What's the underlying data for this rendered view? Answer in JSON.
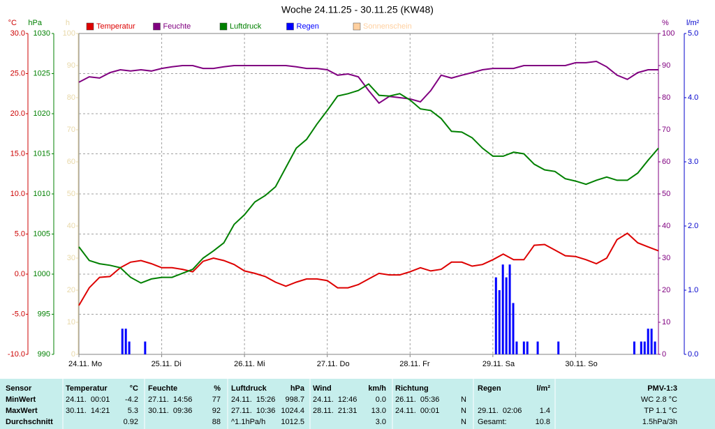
{
  "chart_data": {
    "type": "line",
    "title": "Woche 24.11.25 - 30.11.25 (KW48)",
    "grid": true,
    "x": [
      0,
      3,
      6,
      9,
      12,
      15,
      18,
      21,
      24,
      27,
      30,
      33,
      36,
      39,
      42,
      45,
      48,
      51,
      54,
      57,
      60,
      63,
      66,
      69,
      72,
      75,
      78,
      81,
      84,
      87,
      90,
      93,
      96,
      99,
      102,
      105,
      108,
      111,
      114,
      117,
      120,
      123,
      126,
      129,
      132,
      135,
      138,
      141,
      144,
      147,
      150,
      153,
      156,
      159,
      162,
      165,
      168
    ],
    "xlim": [
      0,
      168
    ],
    "xticks": [
      {
        "value": 0,
        "label": "24.11. Mo"
      },
      {
        "value": 24,
        "label": "25.11. Di"
      },
      {
        "value": 48,
        "label": "26.11. Mi"
      },
      {
        "value": 72,
        "label": "27.11. Do"
      },
      {
        "value": 96,
        "label": "28.11. Fr"
      },
      {
        "value": 120,
        "label": "29.11. Sa"
      },
      {
        "value": 144,
        "label": "30.11. So"
      }
    ],
    "axes": [
      {
        "id": "temp",
        "unit": "°C",
        "color": "#cc0000",
        "side": "left",
        "lim": [
          -10,
          30
        ],
        "ticks": [
          {
            "value": -10,
            "label": "-10.0"
          },
          {
            "value": -5,
            "label": "-5.0"
          },
          {
            "value": 0,
            "label": "0.0"
          },
          {
            "value": 5,
            "label": "5.0"
          },
          {
            "value": 10,
            "label": "10.0"
          },
          {
            "value": 15,
            "label": "15.0"
          },
          {
            "value": 20,
            "label": "20.0"
          },
          {
            "value": 25,
            "label": "25.0"
          },
          {
            "value": 30,
            "label": "30.0"
          }
        ]
      },
      {
        "id": "press",
        "unit": "hPa",
        "color": "#008000",
        "side": "left",
        "lim": [
          990,
          1030
        ],
        "ticks": [
          990,
          995,
          1000,
          1005,
          1010,
          1015,
          1020,
          1025,
          1030
        ]
      },
      {
        "id": "sun",
        "unit": "h",
        "color": "#e8d8a8",
        "side": "left",
        "lim": [
          0,
          100
        ],
        "ticks": [
          0,
          10,
          20,
          30,
          40,
          50,
          60,
          70,
          80,
          90,
          100
        ]
      },
      {
        "id": "hum",
        "unit": "%",
        "color": "#800080",
        "side": "right",
        "lim": [
          0,
          100
        ],
        "ticks": [
          0,
          10,
          20,
          30,
          40,
          50,
          60,
          70,
          80,
          90,
          100
        ]
      },
      {
        "id": "rain",
        "unit": "l/m²",
        "color": "#0000cc",
        "side": "right",
        "lim": [
          0,
          5
        ],
        "ticks": [
          {
            "value": 0,
            "label": "0.0"
          },
          {
            "value": 1,
            "label": "1.0"
          },
          {
            "value": 2,
            "label": "2.0"
          },
          {
            "value": 3,
            "label": "3.0"
          },
          {
            "value": 4,
            "label": "4.0"
          },
          {
            "value": 5,
            "label": "5.0"
          }
        ]
      }
    ],
    "series": [
      {
        "name": "Temperatur",
        "color": "#dd0000",
        "axis": "temp",
        "type": "line",
        "values": [
          -3.9,
          -1.7,
          -0.4,
          -0.3,
          0.8,
          1.5,
          1.7,
          1.3,
          0.8,
          0.8,
          0.6,
          0.3,
          1.6,
          2.0,
          1.7,
          1.2,
          0.4,
          0.1,
          -0.3,
          -1.0,
          -1.5,
          -1.0,
          -0.6,
          -0.6,
          -0.8,
          -1.7,
          -1.7,
          -1.3,
          -0.6,
          0.1,
          -0.1,
          -0.1,
          0.3,
          0.8,
          0.4,
          0.6,
          1.5,
          1.5,
          1.0,
          1.2,
          1.8,
          2.5,
          1.8,
          1.8,
          3.6,
          3.7,
          3.0,
          2.3,
          2.2,
          1.8,
          1.3,
          2.0,
          4.3,
          5.1,
          3.9,
          3.4,
          2.9
        ]
      },
      {
        "name": "Feuchte",
        "color": "#800080",
        "axis": "hum",
        "type": "line",
        "values": [
          84.8,
          86.5,
          86.1,
          87.8,
          88.7,
          88.3,
          88.7,
          88.3,
          89.1,
          89.6,
          90,
          90,
          89.1,
          89.1,
          89.6,
          90,
          90,
          90,
          90,
          90,
          90,
          89.6,
          89.1,
          89.1,
          88.7,
          87,
          87.4,
          86.5,
          82.2,
          78.3,
          80.4,
          80,
          79.6,
          78.7,
          82.2,
          87,
          86.1,
          87,
          87.8,
          88.7,
          89.1,
          89.1,
          89.1,
          90,
          90,
          90,
          90,
          90,
          90.9,
          90.9,
          91.3,
          89.6,
          87,
          85.7,
          87.8,
          88.7,
          88.7
        ]
      },
      {
        "name": "Luftdruck",
        "color": "#008000",
        "axis": "press",
        "type": "line",
        "values": [
          1003.4,
          1001.7,
          1001.3,
          1001.1,
          1000.8,
          999.6,
          998.9,
          999.4,
          999.6,
          999.6,
          1000.1,
          1000.6,
          1002.0,
          1002.9,
          1003.9,
          1006.2,
          1007.4,
          1009.0,
          1009.8,
          1010.9,
          1013.3,
          1015.7,
          1016.8,
          1018.7,
          1020.4,
          1022.2,
          1022.5,
          1022.9,
          1023.7,
          1022.3,
          1022.2,
          1022.5,
          1021.7,
          1020.6,
          1020.4,
          1019.4,
          1017.8,
          1017.7,
          1017.0,
          1015.7,
          1014.7,
          1014.7,
          1015.2,
          1015.0,
          1013.7,
          1013.0,
          1012.8,
          1011.9,
          1011.6,
          1011.2,
          1011.7,
          1012.1,
          1011.7,
          1011.7,
          1012.6,
          1014.2,
          1015.7
        ]
      },
      {
        "name": "Regen",
        "color": "#0000ff",
        "axis": "rain",
        "type": "bar",
        "x": [
          12.6,
          13.6,
          14.6,
          19.2,
          120.9,
          121.9,
          122.9,
          123.9,
          124.9,
          125.9,
          126.9,
          129,
          130,
          133,
          139,
          161,
          163,
          164,
          165,
          166,
          167
        ],
        "values": [
          0.4,
          0.4,
          0.2,
          0.2,
          1.2,
          1.0,
          1.4,
          1.2,
          1.4,
          0.8,
          0.2,
          0.2,
          0.2,
          0.2,
          0.2,
          0.2,
          0.2,
          0.2,
          0.4,
          0.4,
          0.2
        ]
      },
      {
        "name": "Sonnenschein",
        "color": "#ffd0a0",
        "axis": "sun",
        "type": "none"
      }
    ]
  },
  "table": {
    "rows": [
      [
        "Sensor",
        "Temperatur",
        "°C",
        "Feuchte",
        "%",
        "Luftdruck",
        "hPa",
        "Wind",
        "km/h",
        "Richtung",
        null,
        "Regen",
        "l/m²",
        "PMV-1:3"
      ],
      [
        "MinWert",
        "24.11.  00:01",
        "-4.2",
        "27.11.  14:56",
        "77",
        "24.11.  15:26",
        "998.7",
        "24.11.  12:46",
        "0.0",
        "26.11.  05:36",
        "N",
        null,
        null,
        "WC 2.8 °C"
      ],
      [
        "MaxWert",
        "30.11.  14:21",
        "5.3",
        "30.11.  09:36",
        "92",
        "27.11.  10:36",
        "1024.4",
        "28.11.  21:31",
        "13.0",
        "24.11.  00:01",
        "N",
        "29.11.  02:06",
        "1.4",
        "TP 1.1 °C"
      ],
      [
        "Durchschnitt",
        null,
        "0.92",
        null,
        "88",
        "^1.1hPa/h",
        "1012.5",
        null,
        "3.0",
        null,
        "N",
        "Gesamt:",
        "10.8",
        "1.5hPa/3h"
      ]
    ]
  }
}
